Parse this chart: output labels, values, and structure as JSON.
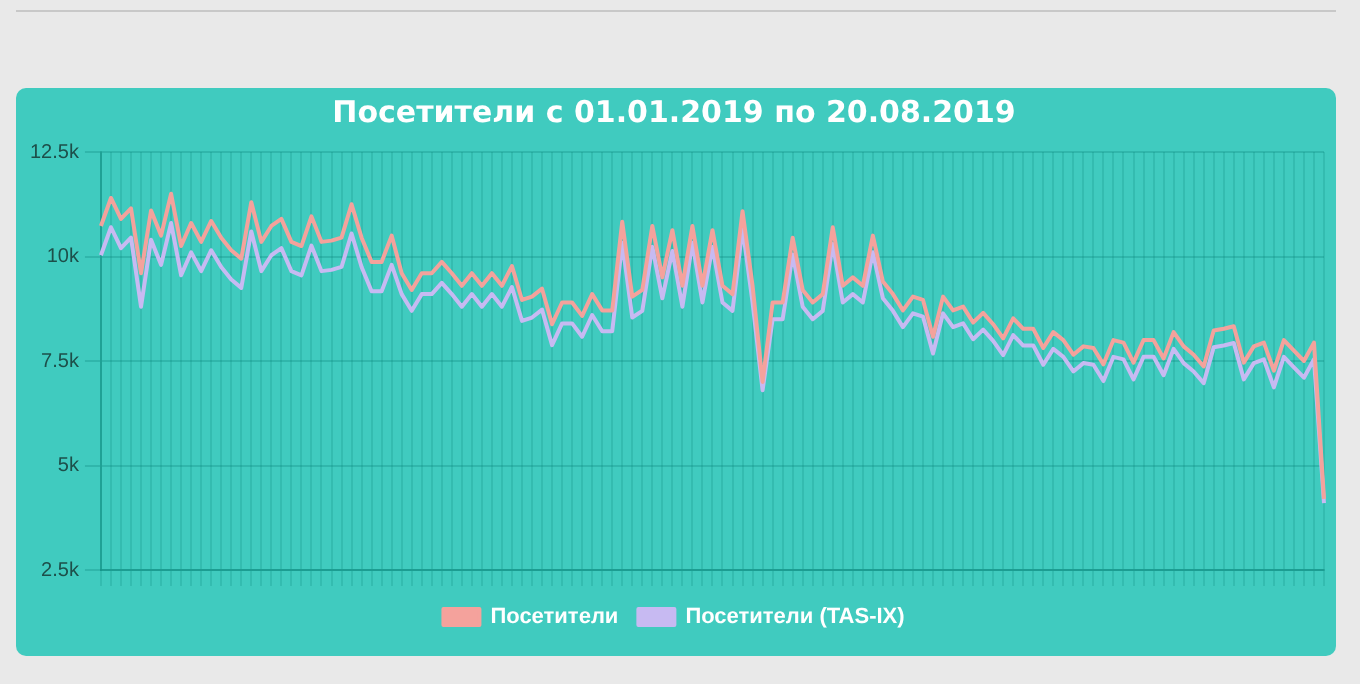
{
  "chart_data": {
    "type": "line",
    "title": "Посетители с 01.01.2019 по 20.08.2019",
    "categories": [
      null,
      null,
      null,
      null,
      null,
      null,
      null,
      null,
      null,
      null,
      null,
      null,
      null,
      null,
      null,
      null,
      null,
      null,
      null,
      null,
      null,
      null,
      null,
      null,
      null,
      null,
      null,
      null,
      null,
      null,
      null,
      null,
      null,
      null,
      null,
      null,
      null,
      null,
      null,
      null,
      null,
      null,
      null,
      null,
      null,
      null,
      null,
      null,
      null,
      null,
      null,
      null,
      null,
      null,
      null,
      null,
      null,
      null,
      null,
      null,
      null,
      null,
      null,
      null,
      null,
      null,
      null,
      null,
      null,
      null,
      null,
      null,
      null,
      null,
      null,
      null,
      null,
      null,
      null,
      null,
      null,
      null,
      null,
      null,
      null,
      null,
      null,
      null,
      null,
      null,
      null,
      null,
      null,
      null,
      null,
      null,
      null,
      null,
      null,
      null,
      null,
      null,
      null,
      null,
      null,
      null,
      null,
      null,
      null,
      null,
      null,
      null,
      null,
      null,
      null,
      null,
      null,
      null,
      null,
      null,
      null,
      null,
      null
    ],
    "series": [
      {
        "name": "Посетители",
        "color": "#f4a29c",
        "values": [
          10.73,
          11.4,
          10.9,
          11.15,
          9.6,
          11.1,
          10.5,
          11.5,
          10.25,
          10.8,
          10.35,
          10.85,
          10.45,
          10.15,
          9.95,
          11.3,
          10.35,
          10.73,
          10.9,
          10.35,
          10.25,
          10.96,
          10.35,
          10.38,
          10.45,
          11.25,
          10.45,
          9.87,
          9.87,
          10.5,
          9.6,
          9.2,
          9.6,
          9.6,
          9.87,
          9.6,
          9.3,
          9.6,
          9.3,
          9.6,
          9.3,
          9.77,
          8.96,
          9.04,
          9.23,
          8.38,
          8.9,
          8.9,
          8.58,
          9.1,
          8.71,
          8.71,
          10.83,
          9.04,
          9.2,
          10.73,
          9.5,
          10.63,
          9.3,
          10.73,
          9.3,
          10.63,
          9.3,
          9.1,
          11.08,
          9.3,
          7.0,
          8.9,
          8.9,
          10.45,
          9.2,
          8.9,
          9.1,
          10.7,
          9.3,
          9.5,
          9.3,
          10.5,
          9.4,
          9.1,
          8.71,
          9.04,
          8.96,
          8.08,
          9.04,
          8.71,
          8.8,
          8.42,
          8.65,
          8.38,
          8.04,
          8.52,
          8.27,
          8.27,
          7.81,
          8.19,
          8.0,
          7.65,
          7.85,
          7.81,
          7.42,
          8.0,
          7.94,
          7.46,
          8.0,
          8.0,
          7.56,
          8.19,
          7.85,
          7.65,
          7.37,
          8.23,
          8.27,
          8.33,
          7.46,
          7.85,
          7.94,
          7.27,
          8.0,
          7.75,
          7.5,
          7.94,
          4.2
        ]
      },
      {
        "name": "Посетители (TAS-IX)",
        "color": "#c7baf2",
        "values": [
          10.03,
          10.7,
          10.2,
          10.45,
          8.8,
          10.4,
          9.8,
          10.8,
          9.55,
          10.1,
          9.65,
          10.15,
          9.75,
          9.45,
          9.25,
          10.6,
          9.65,
          10.03,
          10.2,
          9.65,
          9.55,
          10.26,
          9.65,
          9.68,
          9.75,
          10.55,
          9.75,
          9.17,
          9.17,
          9.8,
          9.1,
          8.7,
          9.1,
          9.1,
          9.37,
          9.1,
          8.8,
          9.1,
          8.8,
          9.1,
          8.8,
          9.27,
          8.46,
          8.54,
          8.73,
          7.88,
          8.4,
          8.4,
          8.08,
          8.6,
          8.21,
          8.21,
          10.33,
          8.54,
          8.7,
          10.23,
          9.0,
          10.13,
          8.8,
          10.33,
          8.9,
          10.23,
          8.9,
          8.7,
          10.68,
          8.9,
          6.8,
          8.5,
          8.5,
          10.05,
          8.8,
          8.5,
          8.7,
          10.3,
          8.9,
          9.1,
          8.9,
          10.1,
          9.0,
          8.7,
          8.31,
          8.64,
          8.56,
          7.68,
          8.64,
          8.31,
          8.4,
          8.02,
          8.25,
          7.98,
          7.64,
          8.12,
          7.87,
          7.87,
          7.41,
          7.79,
          7.6,
          7.25,
          7.45,
          7.41,
          7.02,
          7.6,
          7.54,
          7.06,
          7.6,
          7.6,
          7.16,
          7.79,
          7.45,
          7.25,
          6.97,
          7.83,
          7.87,
          7.93,
          7.06,
          7.45,
          7.54,
          6.87,
          7.6,
          7.35,
          7.1,
          7.54,
          4.1
        ]
      }
    ],
    "ylim": [
      2.5,
      12.5
    ],
    "yticks": [
      {
        "value": 2.5,
        "label": "2.5k"
      },
      {
        "value": 5,
        "label": "5k"
      },
      {
        "value": 7.5,
        "label": "7.5k"
      },
      {
        "value": 10,
        "label": "10k"
      },
      {
        "value": 12.5,
        "label": "12.5k"
      }
    ],
    "tick_labels": "y",
    "grid": true,
    "legend": "bottom",
    "marker": "none",
    "line_style": "solid"
  }
}
